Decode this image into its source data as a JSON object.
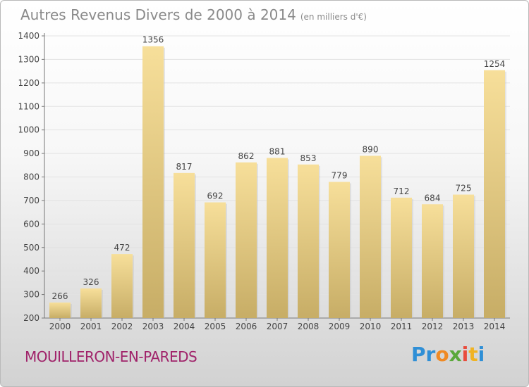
{
  "header": {
    "title": "Autres Revenus Divers de 2000 à 2014",
    "unit": "(en milliers d'€)"
  },
  "footer": {
    "commune": "MOUILLERON-EN-PAREDS",
    "logo_letters": [
      "P",
      "r",
      "o",
      "x",
      "i",
      "t",
      "i"
    ],
    "logo_colors": [
      "#2f8fd6",
      "#2f8fd6",
      "#f08a24",
      "#5aa83a",
      "#e94b3c",
      "#f0b323",
      "#2f8fd6"
    ]
  },
  "colors": {
    "bar_top": "#f7df9a",
    "bar_bottom": "#c7ad66",
    "axis_text": "#444444",
    "grid": "#e2e2e2"
  },
  "chart_data": {
    "type": "bar",
    "title": "Autres Revenus Divers de 2000 à 2014",
    "subtitle": "(en milliers d'€)",
    "categories": [
      "2000",
      "2001",
      "2002",
      "2003",
      "2004",
      "2005",
      "2006",
      "2007",
      "2008",
      "2009",
      "2010",
      "2011",
      "2012",
      "2013",
      "2014"
    ],
    "values": [
      266,
      326,
      472,
      1356,
      817,
      692,
      862,
      881,
      853,
      779,
      890,
      712,
      684,
      725,
      1254
    ],
    "ylim": [
      200,
      1400
    ],
    "yticks": [
      200,
      300,
      400,
      500,
      600,
      700,
      800,
      900,
      1000,
      1100,
      1200,
      1300,
      1400
    ],
    "grid": true,
    "data_labels": true
  }
}
